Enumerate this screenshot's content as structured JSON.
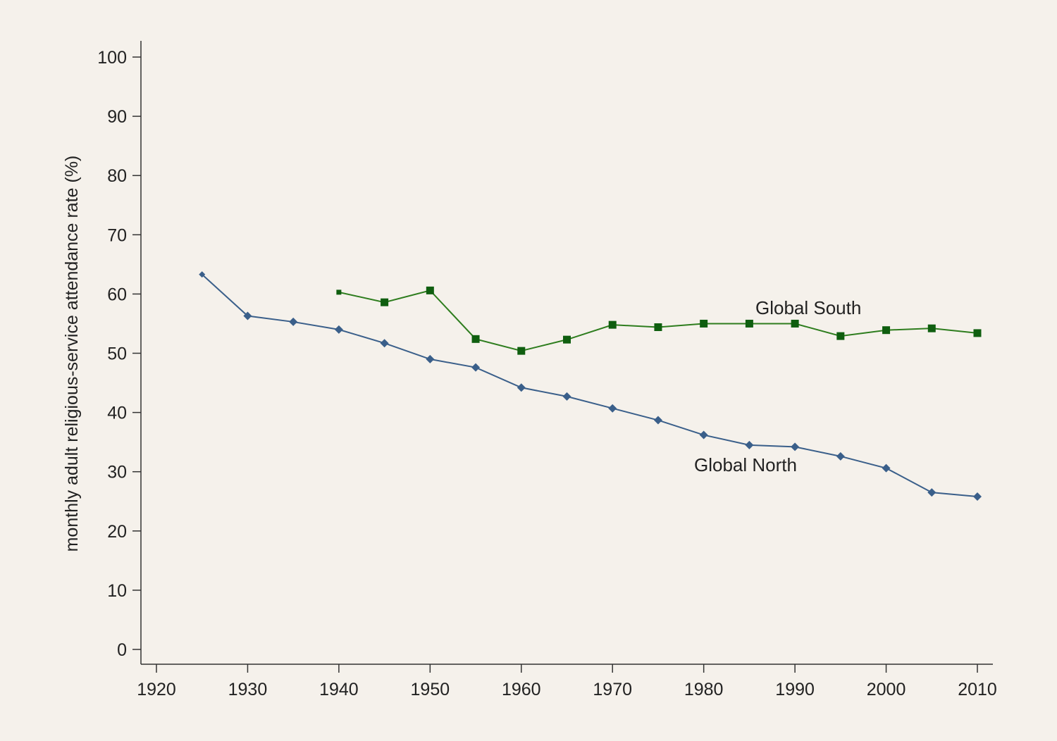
{
  "chart_data": {
    "type": "line",
    "title": "",
    "xlabel": "",
    "ylabel": "monthly adult religious-service attendance rate (%)",
    "xlim": [
      1920,
      2010
    ],
    "ylim": [
      0,
      100
    ],
    "x_ticks": [
      1920,
      1930,
      1940,
      1950,
      1960,
      1970,
      1980,
      1990,
      2000,
      2010
    ],
    "y_ticks": [
      0,
      10,
      20,
      30,
      40,
      50,
      60,
      70,
      80,
      90,
      100
    ],
    "grid": false,
    "legend": "none",
    "series": [
      {
        "name": "Global North",
        "color": "#3a5f8a",
        "marker": "diamond",
        "x": [
          1925,
          1930,
          1935,
          1940,
          1945,
          1950,
          1955,
          1960,
          1965,
          1970,
          1975,
          1980,
          1985,
          1990,
          1995,
          2000,
          2005,
          2010
        ],
        "values": [
          63.3,
          56.3,
          55.3,
          54.0,
          51.7,
          49.0,
          47.6,
          44.2,
          42.7,
          40.7,
          38.7,
          36.2,
          34.5,
          34.2,
          32.6,
          30.6,
          26.5,
          25.8
        ]
      },
      {
        "name": "Global South",
        "color": "#2e7d1e",
        "marker_color": "#0f5e0f",
        "marker": "square",
        "x": [
          1940,
          1945,
          1950,
          1955,
          1960,
          1965,
          1970,
          1975,
          1980,
          1985,
          1990,
          1995,
          2000,
          2005,
          2010
        ],
        "values": [
          60.3,
          58.6,
          60.6,
          52.4,
          50.4,
          52.3,
          54.8,
          54.4,
          55.0,
          55.0,
          55.0,
          52.9,
          53.9,
          54.2,
          53.4
        ]
      }
    ]
  }
}
